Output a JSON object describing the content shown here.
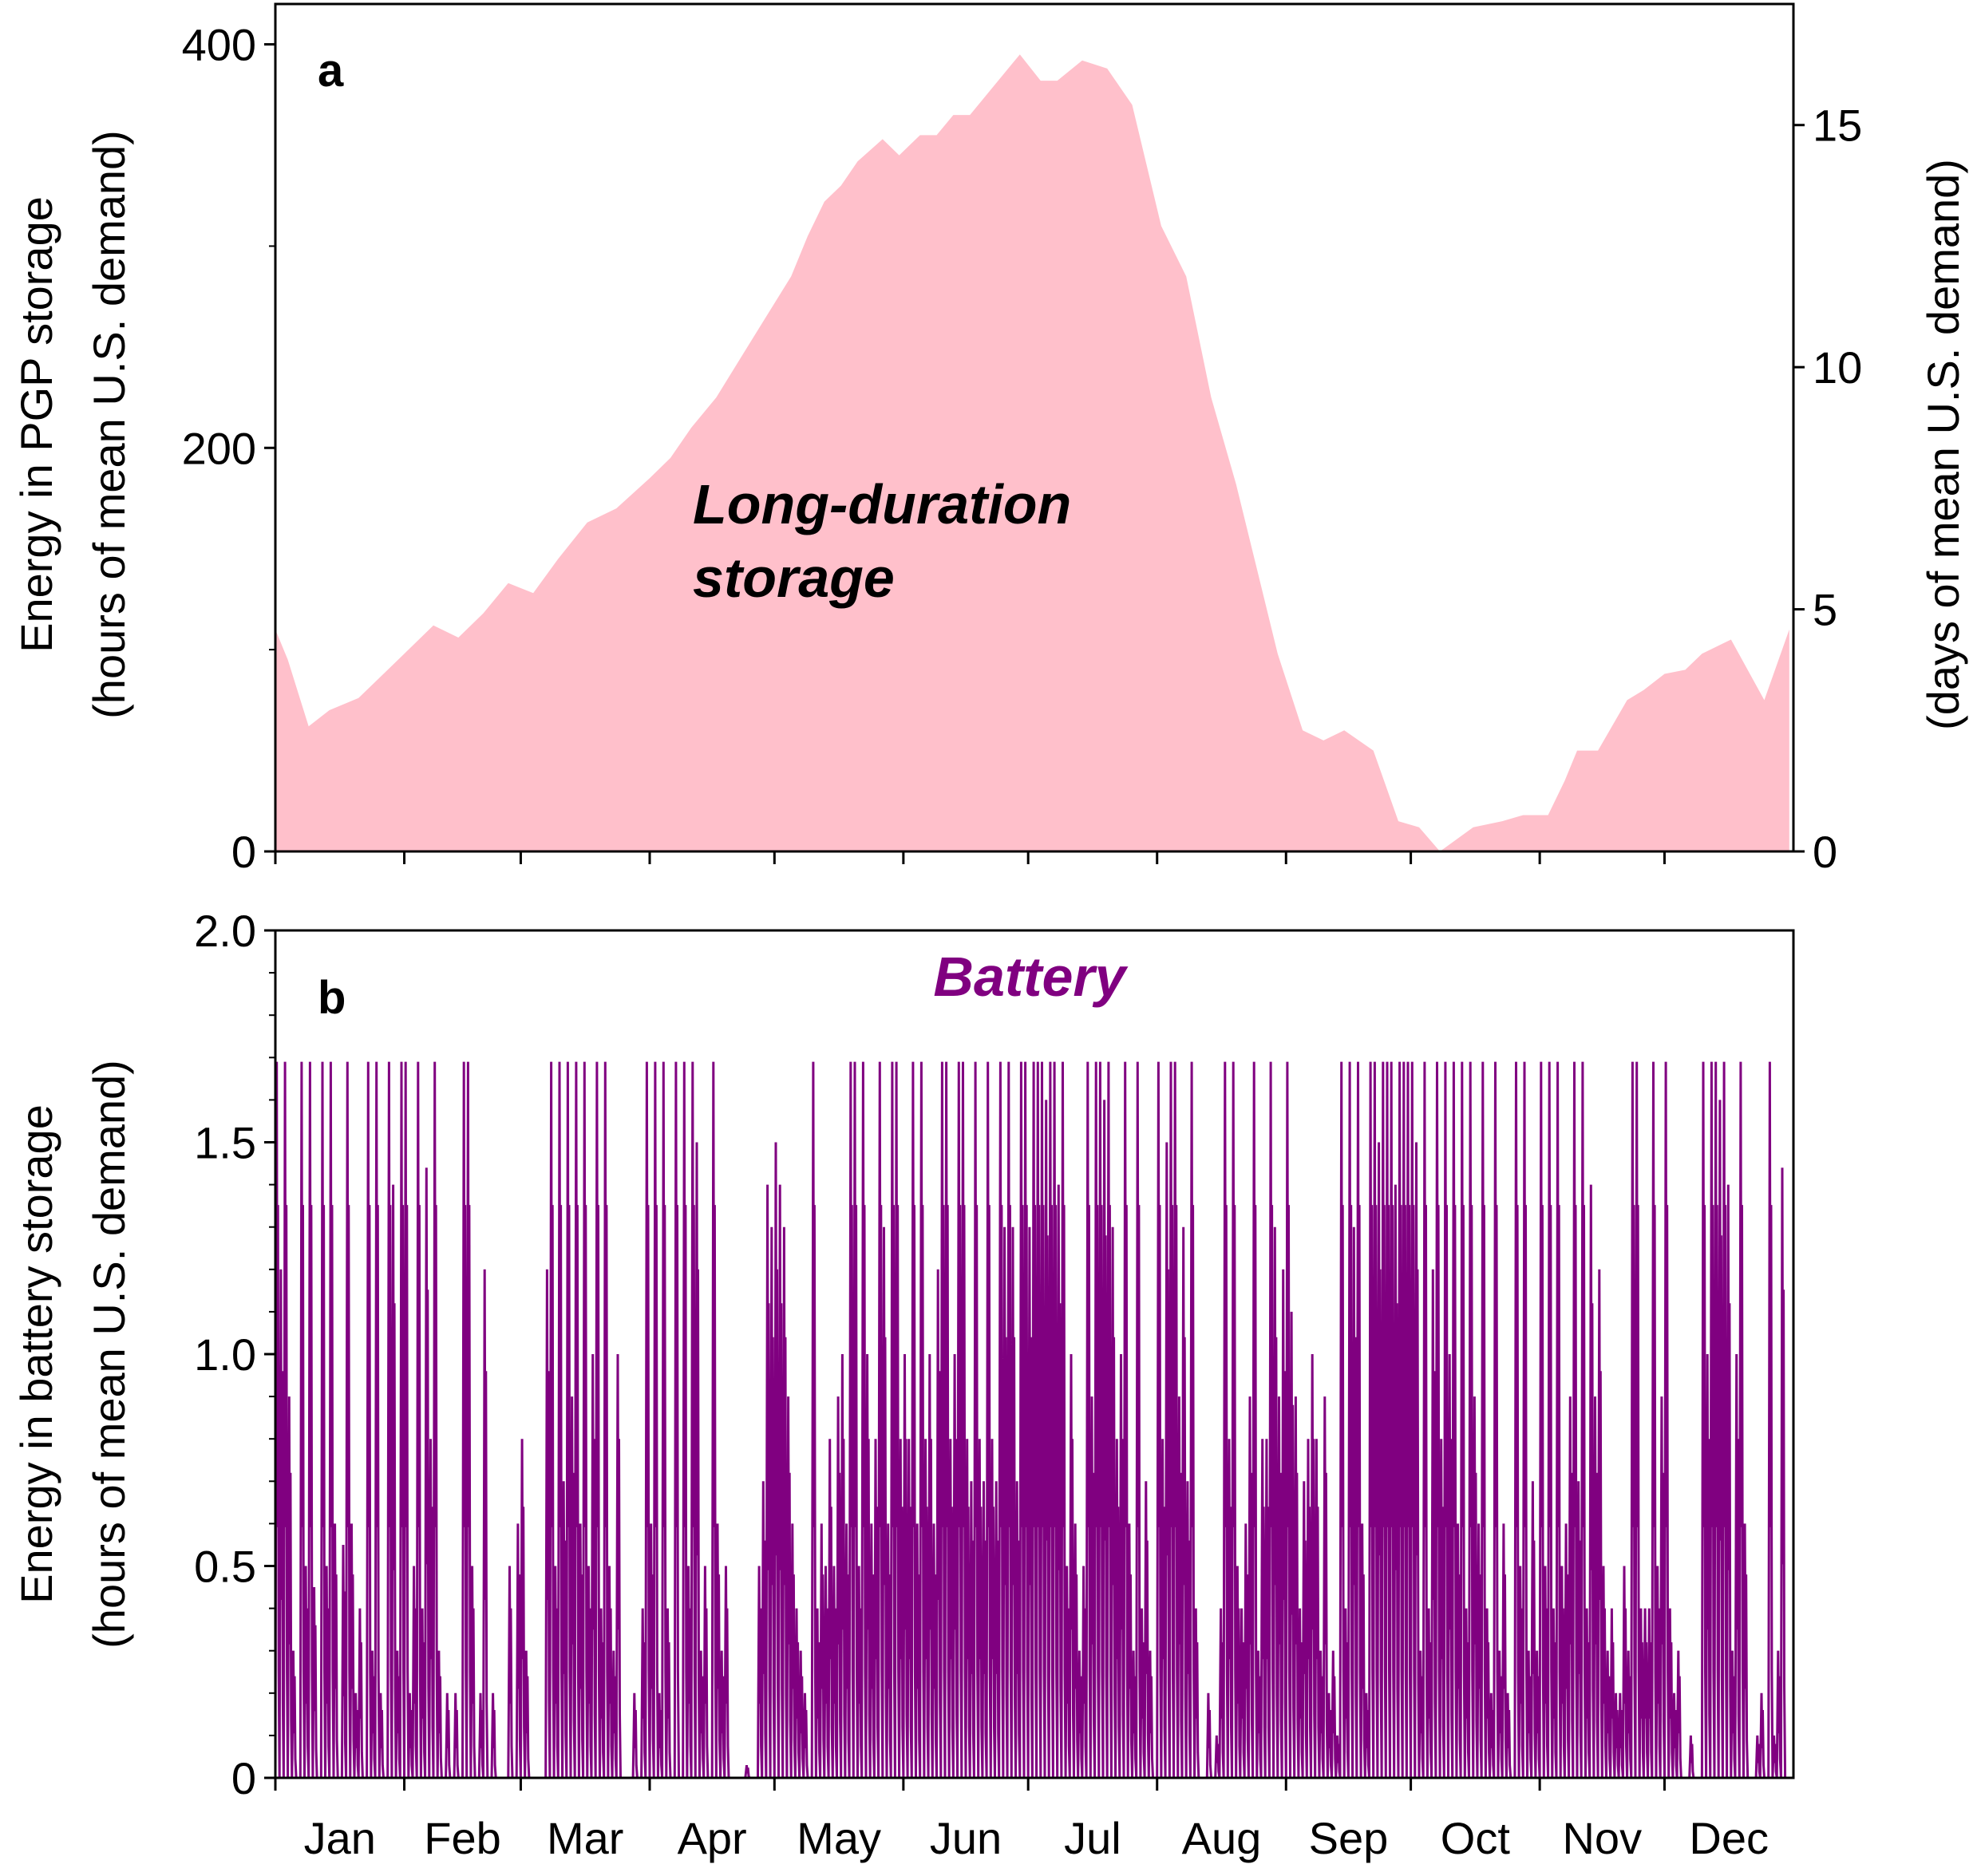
{
  "colors": {
    "pgp_fill": "#ffc0cb",
    "battery_line": "#800080",
    "axis": "#000000"
  },
  "chart_data": [
    {
      "type": "area",
      "panel_label": "a",
      "annotation": [
        "Long-duration",
        "storage"
      ],
      "xlabel": "",
      "ylabel": [
        "Energy in PGP storage",
        "(hours of mean U.S. demand)"
      ],
      "y2label": "(days of mean U.S. demand)",
      "ylim": [
        0,
        420
      ],
      "yticks": [
        "0",
        "200",
        "400"
      ],
      "yticks_minor": [
        100,
        300
      ],
      "y2ticks": [
        "0",
        "5",
        "10",
        "15"
      ],
      "grid": false,
      "series": [
        {
          "x": [
            0,
            3,
            8,
            13,
            20,
            26,
            32,
            38,
            44,
            50,
            56,
            62,
            68,
            75,
            82,
            90,
            95,
            100,
            106,
            112,
            118,
            124,
            128,
            132,
            136,
            140,
            146,
            150,
            155,
            159,
            163,
            167,
            171,
            175,
            179,
            184,
            188,
            194,
            200,
            206,
            213,
            219,
            225,
            231,
            236,
            241,
            247,
            252,
            257,
            264,
            270,
            275,
            280,
            288,
            295,
            300,
            306,
            310,
            313,
            318,
            325,
            329,
            334,
            339,
            343,
            350,
            358,
            364
          ],
          "values": [
            110,
            95,
            62,
            70,
            76,
            88,
            100,
            112,
            106,
            118,
            133,
            128,
            145,
            163,
            170,
            185,
            195,
            210,
            225,
            245,
            265,
            285,
            305,
            322,
            330,
            342,
            353,
            345,
            355,
            355,
            365,
            365,
            375,
            385,
            395,
            382,
            382,
            392,
            388,
            370,
            310,
            285,
            225,
            182,
            140,
            98,
            60,
            55,
            60,
            50,
            15,
            12,
            0,
            12,
            15,
            18,
            18,
            35,
            50,
            50,
            75,
            80,
            88,
            90,
            98,
            105,
            75,
            110
          ]
        }
      ]
    },
    {
      "type": "line",
      "panel_label": "b",
      "annotation": "Battery",
      "xlabel": "",
      "ylabel": [
        "Energy in battery storage",
        "(hours of mean U.S. demand)"
      ],
      "ylim": [
        0,
        2.0
      ],
      "yticks": [
        "0",
        "0.5",
        "1.0",
        "1.5",
        "2.0"
      ],
      "grid": false,
      "x_categories": [
        "Jan",
        "Feb",
        "Mar",
        "Apr",
        "May",
        "Jun",
        "Jul",
        "Aug",
        "Sep",
        "Oct",
        "Nov",
        "Dec"
      ],
      "month_start_days": [
        0,
        31,
        59,
        90,
        120,
        151,
        181,
        212,
        243,
        273,
        304,
        334
      ],
      "x_days": 365,
      "series": [
        {
          "cap": 1.69,
          "daily_peak": [
            1.69,
            1.2,
            1.69,
            0.9,
            0.3,
            0.0,
            1.69,
            0.5,
            1.69,
            0.45,
            0.0,
            1.69,
            0.5,
            1.69,
            0.6,
            0.0,
            0.55,
            1.69,
            0.6,
            0.2,
            0.4,
            0.0,
            1.69,
            0.3,
            1.69,
            0.2,
            0.0,
            1.69,
            1.4,
            0.3,
            1.69,
            1.69,
            0.2,
            0.5,
            1.69,
            0.4,
            1.44,
            0.8,
            1.69,
            0.3,
            0.0,
            0.2,
            0.0,
            0.2,
            0.0,
            1.69,
            1.69,
            0.5,
            0.0,
            0.2,
            1.2,
            0.0,
            0.2,
            0.0,
            0.0,
            0.0,
            0.5,
            0.0,
            0.6,
            0.8,
            0.3,
            0.0,
            0.0,
            0.0,
            0.0,
            1.2,
            1.69,
            0.5,
            1.69,
            0.7,
            1.69,
            0.9,
            1.69,
            0.6,
            1.69,
            0.5,
            1.0,
            1.69,
            0.4,
            1.69,
            0.5,
            0.3,
            1.0,
            0.0,
            0.0,
            0.0,
            0.2,
            0.0,
            0.4,
            1.69,
            0.6,
            1.69,
            0.2,
            1.69,
            0.4,
            0.0,
            1.69,
            0.0,
            1.69,
            0.5,
            1.69,
            1.5,
            0.3,
            0.5,
            0.0,
            1.69,
            0.6,
            0.3,
            0.5,
            0.0,
            0.0,
            0.0,
            0.0,
            0.03,
            0.0,
            0.0,
            0.5,
            0.7,
            1.4,
            1.3,
            1.5,
            1.4,
            1.3,
            0.9,
            0.6,
            0.4,
            0.3,
            0.2,
            0.0,
            1.69,
            0.4,
            0.6,
            0.5,
            0.8,
            0.5,
            0.9,
            1.0,
            0.6,
            1.69,
            1.69,
            0.5,
            1.69,
            1.0,
            0.6,
            0.8,
            1.69,
            1.3,
            0.6,
            1.69,
            1.69,
            0.8,
            1.0,
            0.8,
            1.69,
            0.6,
            1.69,
            0.8,
            1.0,
            0.6,
            1.2,
            1.69,
            1.69,
            0.8,
            1.0,
            1.69,
            1.69,
            0.8,
            0.7,
            1.69,
            0.8,
            0.7,
            1.69,
            0.8,
            0.7,
            1.69,
            1.3,
            1.69,
            1.3,
            0.7,
            1.69,
            1.69,
            1.3,
            1.69,
            1.69,
            1.69,
            1.6,
            1.69,
            1.69,
            1.4,
            1.69,
            0.5,
            1.0,
            0.6,
            0.3,
            0.5,
            1.69,
            0.9,
            1.69,
            1.69,
            1.6,
            1.69,
            1.3,
            0.8,
            1.0,
            1.69,
            0.6,
            0.3,
            1.69,
            0.4,
            0.7,
            0.3,
            0.0,
            1.69,
            0.8,
            1.5,
            1.69,
            1.69,
            0.9,
            1.3,
            0.7,
            1.69,
            0.4,
            0.0,
            0.0,
            0.2,
            0.0,
            0.1,
            0.4,
            1.69,
            0.8,
            1.69,
            0.5,
            0.4,
            0.6,
            0.9,
            1.69,
            0.3,
            0.8,
            0.8,
            1.69,
            1.3,
            0.9,
            1.2,
            1.69,
            1.1,
            0.9,
            0.4,
            0.7,
            0.8,
            1.0,
            0.8,
            0.3,
            0.9,
            0.2,
            0.3,
            0.1,
            1.69,
            0.4,
            1.69,
            1.3,
            1.69,
            0.6,
            0.2,
            1.69,
            1.69,
            1.5,
            1.69,
            1.69,
            1.69,
            1.4,
            1.69,
            1.69,
            1.69,
            1.69,
            1.5,
            0.3,
            1.69,
            0.4,
            1.2,
            1.69,
            0.8,
            1.69,
            1.0,
            1.69,
            0.6,
            1.69,
            0.4,
            1.69,
            0.9,
            0.6,
            1.69,
            0.4,
            0.2,
            1.69,
            0.3,
            0.6,
            0.2,
            0.0,
            1.69,
            0.5,
            1.69,
            0.3,
            0.7,
            0.3,
            1.69,
            0.5,
            1.69,
            0.4,
            1.69,
            0.5,
            0.6,
            0.9,
            1.69,
            0.7,
            1.69,
            0.4,
            1.4,
            0.9,
            1.2,
            0.5,
            0.3,
            0.4,
            0.2,
            0.2,
            0.5,
            0.3,
            1.69,
            1.69,
            0.4,
            0.4,
            0.4,
            1.69,
            0.5,
            0.9,
            1.69,
            0.4,
            0.2,
            0.3,
            0.0,
            0.0,
            0.1,
            0.0,
            0.0,
            1.69,
            1.0,
            1.69,
            1.69,
            1.6,
            1.69,
            1.4,
            0.3,
            1.0,
            1.69,
            0.6,
            0.0,
            0.0,
            0.1,
            0.2,
            0.0,
            1.69,
            0.1,
            0.3,
            1.44
          ]
        }
      ]
    }
  ]
}
